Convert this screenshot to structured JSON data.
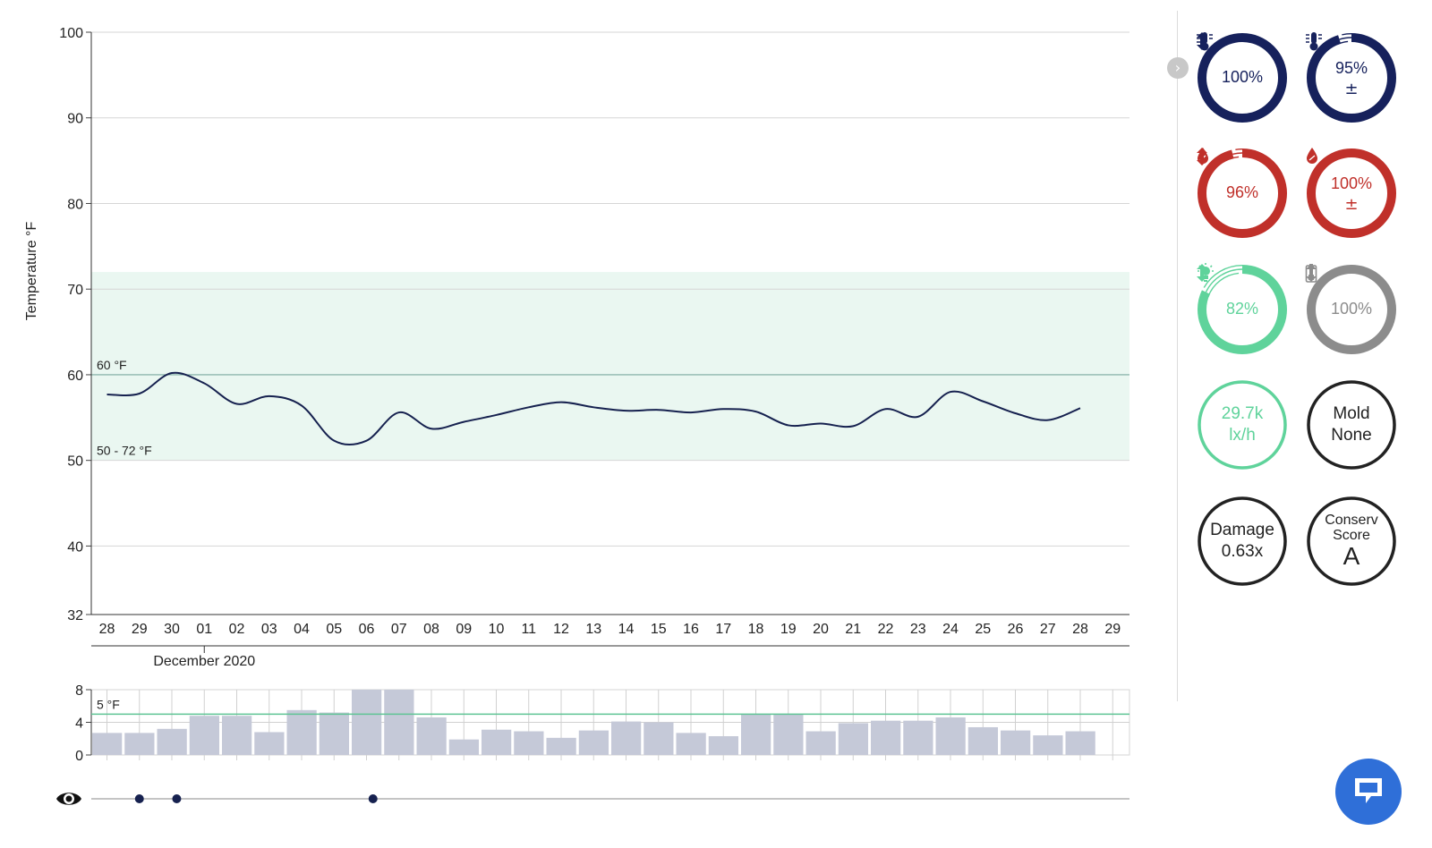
{
  "chart_data": {
    "type": "line",
    "ylabel": "Temperature °F",
    "ylim": [
      32,
      100
    ],
    "y_ticks": [
      "32",
      "40",
      "50",
      "60",
      "70",
      "80",
      "90",
      "100"
    ],
    "x_ticks": [
      "28",
      "29",
      "30",
      "01",
      "02",
      "03",
      "04",
      "05",
      "06",
      "07",
      "08",
      "09",
      "10",
      "11",
      "12",
      "13",
      "14",
      "15",
      "16",
      "17",
      "18",
      "19",
      "20",
      "21",
      "22",
      "23",
      "24",
      "25",
      "26",
      "27",
      "28",
      "29"
    ],
    "month_label": "December 2020",
    "target_band": {
      "low": 50,
      "high": 72,
      "label": "50 - 72 °F",
      "color": "#eaf7f1"
    },
    "threshold": {
      "value": 60,
      "label": "60 °F"
    },
    "series": [
      {
        "color": "#16214f",
        "x": [
          0,
          1,
          2,
          3,
          4,
          5,
          6,
          7,
          8,
          9,
          10,
          11,
          12,
          13,
          14,
          15,
          16,
          17,
          18,
          19,
          20,
          21,
          22,
          23,
          24,
          25,
          26,
          27,
          28,
          29,
          30
        ],
        "values": [
          57.7,
          57.8,
          60.2,
          59.0,
          56.6,
          57.5,
          56.4,
          52.3,
          52.3,
          55.6,
          53.7,
          54.5,
          55.3,
          56.2,
          56.8,
          56.2,
          55.8,
          55.9,
          55.6,
          56.0,
          55.7,
          54.1,
          54.3,
          54.0,
          56.0,
          55.1,
          58.0,
          56.9,
          55.5,
          54.7,
          56.1
        ]
      }
    ],
    "sub_chart": {
      "type": "bar",
      "ylim": [
        0,
        8
      ],
      "y_ticks": [
        "0",
        "4",
        "8"
      ],
      "threshold": {
        "value": 5,
        "label": "5 °F"
      },
      "values": [
        2.7,
        2.7,
        3.2,
        4.8,
        4.8,
        2.8,
        5.5,
        5.2,
        8.0,
        8.0,
        4.6,
        1.9,
        3.1,
        2.9,
        2.1,
        3.0,
        4.1,
        4.0,
        2.7,
        2.3,
        5.0,
        5.0,
        2.9,
        3.9,
        4.2,
        4.2,
        4.6,
        3.4,
        3.0,
        2.4,
        2.9
      ]
    },
    "event_markers": [
      1,
      2.15,
      8.2
    ]
  },
  "sidebar": {
    "collapse_glyph": "›",
    "gauges": [
      {
        "id": "temp-stability",
        "value": "100%",
        "fraction": 1.0,
        "color": "#16215c",
        "icons": [
          "thermometer-icon",
          "up-down-arrow-icon"
        ]
      },
      {
        "id": "temp-fluctuation",
        "value": "95%",
        "fraction": 0.95,
        "color": "#16215c",
        "icons": [
          "thermometer-icon",
          "plus-minus-icon"
        ],
        "glyph2": "±"
      },
      {
        "id": "rh-stability",
        "value": "96%",
        "fraction": 0.96,
        "color": "#c0302a",
        "icons": [
          "droplet-icon",
          "up-down-arrow-icon"
        ]
      },
      {
        "id": "rh-fluctuation",
        "value": "100%",
        "fraction": 1.0,
        "color": "#c0302a",
        "icons": [
          "droplet-icon",
          "plus-minus-icon"
        ],
        "glyph2": "±"
      },
      {
        "id": "light",
        "value": "82%",
        "fraction": 0.82,
        "color": "#5fd39b",
        "icons": [
          "light-bulb-icon",
          "up-down-arrow-icon"
        ]
      },
      {
        "id": "battery",
        "value": "100%",
        "fraction": 1.0,
        "color": "#8c8c8c",
        "icons": [
          "battery-icon",
          "up-down-arrow-icon"
        ]
      }
    ],
    "lux": {
      "line1": "29.7k",
      "line2": "lx/h",
      "color": "#5fd39b"
    },
    "mold": {
      "line1": "Mold",
      "line2": "None"
    },
    "damage": {
      "line1": "Damage",
      "line2": "0.63x"
    },
    "conserv": {
      "line1": "Conserv",
      "line2": "Score",
      "grade": "A"
    }
  }
}
